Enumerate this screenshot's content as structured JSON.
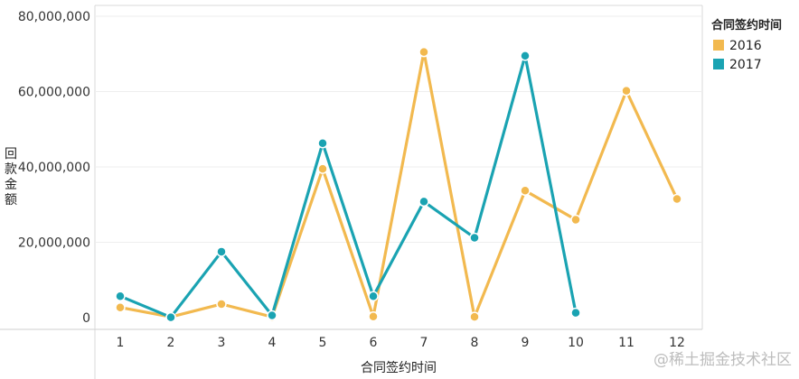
{
  "chart_data": {
    "type": "line",
    "categories": [
      "1",
      "2",
      "3",
      "4",
      "5",
      "6",
      "7",
      "8",
      "9",
      "10",
      "11",
      "12"
    ],
    "series": [
      {
        "name": "2016",
        "color": "#f2b94f",
        "values": [
          2700000,
          200000,
          3600000,
          200000,
          39500000,
          300000,
          70500000,
          200000,
          33700000,
          26000000,
          60200000,
          31500000
        ]
      },
      {
        "name": "2017",
        "color": "#1aa3b2",
        "values": [
          5700000,
          100000,
          17500000,
          600000,
          46300000,
          5700000,
          30800000,
          21200000,
          69500000,
          1300000,
          null,
          null
        ]
      }
    ],
    "ylabel": "回款金额",
    "xlabel": "合同签约时间",
    "yticks": [
      "0",
      "20,000,000",
      "40,000,000",
      "60,000,000",
      "80,000,000"
    ],
    "ylim": [
      0,
      80000000
    ],
    "grid": true,
    "legend": {
      "title": "合同签约时间",
      "placement": "right"
    }
  },
  "watermark": "@稀土掘金技术社区"
}
